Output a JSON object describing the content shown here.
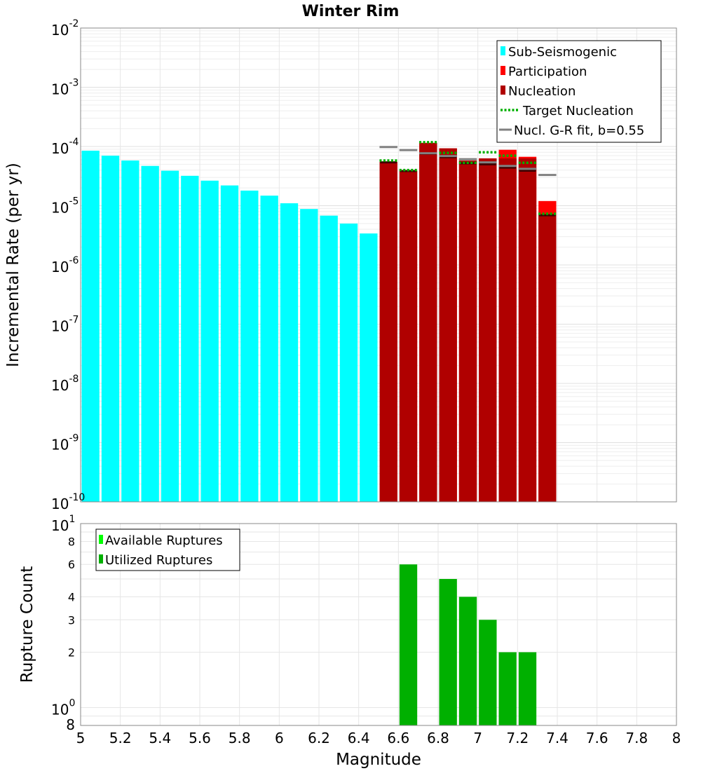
{
  "chart_data": [
    {
      "type": "bar",
      "title": "Winter Rim",
      "xlabel": "",
      "ylabel": "Incremental Rate (per yr)",
      "yscale": "log",
      "xlim": [
        5,
        8
      ],
      "ylim": [
        1e-10,
        0.01
      ],
      "y_tick_labels": [
        {
          "base": "10",
          "exp": "-10",
          "value": 1e-10
        },
        {
          "base": "10",
          "exp": "-9",
          "value": 1e-09
        },
        {
          "base": "10",
          "exp": "-8",
          "value": 1e-08
        },
        {
          "base": "10",
          "exp": "-7",
          "value": 1e-07
        },
        {
          "base": "10",
          "exp": "-6",
          "value": 1e-06
        },
        {
          "base": "10",
          "exp": "-5",
          "value": 1e-05
        },
        {
          "base": "10",
          "exp": "-4",
          "value": 0.0001
        },
        {
          "base": "10",
          "exp": "-3",
          "value": 0.001
        },
        {
          "base": "10",
          "exp": "-2",
          "value": 0.01
        }
      ],
      "bin_width": 0.1,
      "legend": [
        {
          "label": "Sub-Seismogenic",
          "color": "#00ffff",
          "kind": "bar"
        },
        {
          "label": "Participation",
          "color": "#ff0000",
          "kind": "bar"
        },
        {
          "label": "Nucleation",
          "color": "#b00000",
          "kind": "bar"
        },
        {
          "label": "Target Nucleation",
          "color": "#00b000",
          "kind": "dotted"
        },
        {
          "label": "Nucl. G-R fit, b=0.55",
          "color": "#808080",
          "kind": "line"
        }
      ],
      "series": [
        {
          "name": "Sub-Seismogenic",
          "x": [
            5.05,
            5.15,
            5.25,
            5.35,
            5.45,
            5.55,
            5.65,
            5.75,
            5.85,
            5.95,
            6.05,
            6.15,
            6.25,
            6.35,
            6.45
          ],
          "values": [
            8.5e-05,
            7e-05,
            5.8e-05,
            4.7e-05,
            3.9e-05,
            3.2e-05,
            2.65e-05,
            2.2e-05,
            1.8e-05,
            1.48e-05,
            1.1e-05,
            8.8e-06,
            6.8e-06,
            5e-06,
            3.4e-06
          ]
        },
        {
          "name": "Participation",
          "x": [
            6.55,
            6.65,
            6.75,
            6.85,
            6.95,
            7.05,
            7.15,
            7.25,
            7.35
          ],
          "values": [
            5.5e-05,
            3.9e-05,
            0.000115,
            9.3e-05,
            5.8e-05,
            6.3e-05,
            8.8e-05,
            6.7e-05,
            1.2e-05
          ]
        },
        {
          "name": "Nucleation",
          "x": [
            6.55,
            6.65,
            6.75,
            6.85,
            6.95,
            7.05,
            7.15,
            7.25,
            7.35
          ],
          "values": [
            5.5e-05,
            3.9e-05,
            0.000115,
            9.3e-05,
            5.8e-05,
            6.3e-05,
            6.3e-05,
            6.3e-05,
            7e-06
          ]
        },
        {
          "name": "Nucleation dark marker",
          "x": [
            6.55,
            6.65,
            6.75,
            6.85,
            6.95,
            7.05,
            7.15,
            7.25,
            7.35
          ],
          "values": [
            5.4e-05,
            3.85e-05,
            7.6e-05,
            6.6e-05,
            5.2e-05,
            5e-05,
            4.4e-05,
            3.9e-05,
            6.9e-06
          ]
        },
        {
          "name": "Target Nucleation",
          "x": [
            6.55,
            6.65,
            6.75,
            6.85,
            6.95,
            7.05,
            7.15,
            7.25,
            7.35
          ],
          "values": [
            5.8e-05,
            4e-05,
            0.000118,
            7.8e-05,
            5.3e-05,
            8e-05,
            7e-05,
            5.3e-05,
            7.3e-06
          ]
        },
        {
          "name": "Nucl. G-R fit, b=0.55",
          "x": [
            6.55,
            6.65,
            6.75,
            6.85,
            6.95,
            7.05,
            7.15,
            7.25,
            7.35
          ],
          "values": [
            9.8e-05,
            8.7e-05,
            7.7e-05,
            6.9e-05,
            6.1e-05,
            5.4e-05,
            4.7e-05,
            4.2e-05,
            3.3e-05
          ]
        }
      ]
    },
    {
      "type": "bar",
      "title": "",
      "xlabel": "Magnitude",
      "ylabel": "Rupture Count",
      "yscale": "log",
      "xlim": [
        5,
        8
      ],
      "ylim": [
        0.8,
        10
      ],
      "x_tick_labels": [
        "5",
        "5.2",
        "5.4",
        "5.6",
        "5.8",
        "6",
        "6.2",
        "6.4",
        "6.6",
        "6.8",
        "7",
        "7.2",
        "7.4",
        "7.6",
        "7.8",
        "8"
      ],
      "x_ticks": [
        5,
        5.2,
        5.4,
        5.6,
        5.8,
        6,
        6.2,
        6.4,
        6.6,
        6.8,
        7,
        7.2,
        7.4,
        7.6,
        7.8,
        8
      ],
      "y_major_labels": [
        {
          "base": "10",
          "exp": "1",
          "value": 10
        },
        {
          "base": "10",
          "exp": "0",
          "value": 1
        }
      ],
      "y_minor_labels": [
        "8",
        "6",
        "4",
        "3",
        "2",
        "8"
      ],
      "y_minor_values": [
        8,
        6,
        4,
        3,
        2,
        0.8
      ],
      "legend": [
        {
          "label": "Available Ruptures",
          "color": "#00ff00"
        },
        {
          "label": "Utilized Ruptures",
          "color": "#00b000"
        }
      ],
      "series": [
        {
          "name": "Utilized Ruptures",
          "x": [
            6.65,
            6.85,
            6.95,
            7.05,
            7.15,
            7.25
          ],
          "values": [
            6,
            5,
            4,
            3,
            2,
            2
          ]
        }
      ]
    }
  ]
}
